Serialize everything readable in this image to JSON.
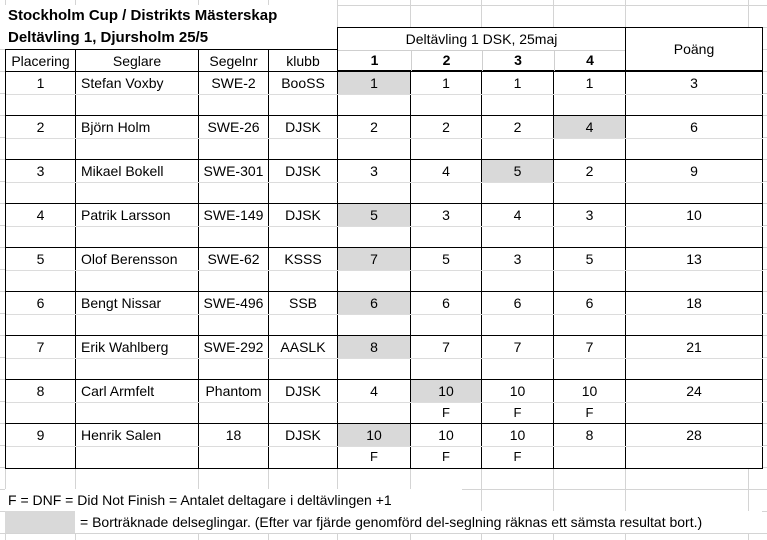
{
  "titles": {
    "line1": "Stockholm Cup / Distrikts Mästerskap",
    "line2": "Deltävling 1, Djursholm 25/5"
  },
  "header": {
    "placering": "Placering",
    "seglare": "Seglare",
    "segelnr": "Segelnr",
    "klubb": "klubb",
    "event": "Deltävling 1 DSK, 25maj",
    "races": [
      "1",
      "2",
      "3",
      "4"
    ],
    "poang": "Poäng"
  },
  "rows": [
    {
      "placering": "1",
      "seglare": "Stefan Voxby",
      "segelnr": "SWE-2",
      "klubb": "BooSS",
      "races": [
        {
          "v": "1",
          "discarded": true,
          "dnf": false
        },
        {
          "v": "1",
          "discarded": false,
          "dnf": false
        },
        {
          "v": "1",
          "discarded": false,
          "dnf": false
        },
        {
          "v": "1",
          "discarded": false,
          "dnf": false
        }
      ],
      "poang": "3"
    },
    {
      "placering": "2",
      "seglare": "Björn Holm",
      "segelnr": "SWE-26",
      "klubb": "DJSK",
      "races": [
        {
          "v": "2",
          "discarded": false,
          "dnf": false
        },
        {
          "v": "2",
          "discarded": false,
          "dnf": false
        },
        {
          "v": "2",
          "discarded": false,
          "dnf": false
        },
        {
          "v": "4",
          "discarded": true,
          "dnf": false
        }
      ],
      "poang": "6"
    },
    {
      "placering": "3",
      "seglare": "Mikael Bokell",
      "segelnr": "SWE-301",
      "klubb": "DJSK",
      "races": [
        {
          "v": "3",
          "discarded": false,
          "dnf": false
        },
        {
          "v": "4",
          "discarded": false,
          "dnf": false
        },
        {
          "v": "5",
          "discarded": true,
          "dnf": false
        },
        {
          "v": "2",
          "discarded": false,
          "dnf": false
        }
      ],
      "poang": "9"
    },
    {
      "placering": "4",
      "seglare": "Patrik Larsson",
      "segelnr": "SWE-149",
      "klubb": "DJSK",
      "races": [
        {
          "v": "5",
          "discarded": true,
          "dnf": false
        },
        {
          "v": "3",
          "discarded": false,
          "dnf": false
        },
        {
          "v": "4",
          "discarded": false,
          "dnf": false
        },
        {
          "v": "3",
          "discarded": false,
          "dnf": false
        }
      ],
      "poang": "10"
    },
    {
      "placering": "5",
      "seglare": "Olof Berensson",
      "segelnr": "SWE-62",
      "klubb": "KSSS",
      "races": [
        {
          "v": "7",
          "discarded": true,
          "dnf": false
        },
        {
          "v": "5",
          "discarded": false,
          "dnf": false
        },
        {
          "v": "3",
          "discarded": false,
          "dnf": false
        },
        {
          "v": "5",
          "discarded": false,
          "dnf": false
        }
      ],
      "poang": "13"
    },
    {
      "placering": "6",
      "seglare": "Bengt Nissar",
      "segelnr": "SWE-496",
      "klubb": "SSB",
      "races": [
        {
          "v": "6",
          "discarded": true,
          "dnf": false
        },
        {
          "v": "6",
          "discarded": false,
          "dnf": false
        },
        {
          "v": "6",
          "discarded": false,
          "dnf": false
        },
        {
          "v": "6",
          "discarded": false,
          "dnf": false
        }
      ],
      "poang": "18"
    },
    {
      "placering": "7",
      "seglare": "Erik Wahlberg",
      "segelnr": "SWE-292",
      "klubb": "AASLK",
      "races": [
        {
          "v": "8",
          "discarded": true,
          "dnf": false
        },
        {
          "v": "7",
          "discarded": false,
          "dnf": false
        },
        {
          "v": "7",
          "discarded": false,
          "dnf": false
        },
        {
          "v": "7",
          "discarded": false,
          "dnf": false
        }
      ],
      "poang": "21"
    },
    {
      "placering": "8",
      "seglare": "Carl Armfelt",
      "segelnr": "Phantom",
      "klubb": "DJSK",
      "races": [
        {
          "v": "4",
          "discarded": false,
          "dnf": false
        },
        {
          "v": "10",
          "discarded": true,
          "dnf": true
        },
        {
          "v": "10",
          "discarded": false,
          "dnf": true
        },
        {
          "v": "10",
          "discarded": false,
          "dnf": true
        }
      ],
      "poang": "24"
    },
    {
      "placering": "9",
      "seglare": "Henrik Salen",
      "segelnr": "18",
      "klubb": "DJSK",
      "races": [
        {
          "v": "10",
          "discarded": true,
          "dnf": true
        },
        {
          "v": "10",
          "discarded": false,
          "dnf": true
        },
        {
          "v": "10",
          "discarded": false,
          "dnf": true
        },
        {
          "v": "8",
          "discarded": false,
          "dnf": false
        }
      ],
      "poang": "28"
    }
  ],
  "footer": {
    "dnf_marker": "F",
    "dnf_note": "F = DNF = Did Not Finish = Antalet deltagare i deltävlingen +1",
    "discard_note": "= Borträknade delseglingar. (Efter var fjärde genomförd del-seglning räknas ett sämsta resultat bort.)"
  },
  "colors": {
    "discard_fill": "#d9d9d9",
    "gridline": "#d4d4d4",
    "table_border": "#000000"
  }
}
